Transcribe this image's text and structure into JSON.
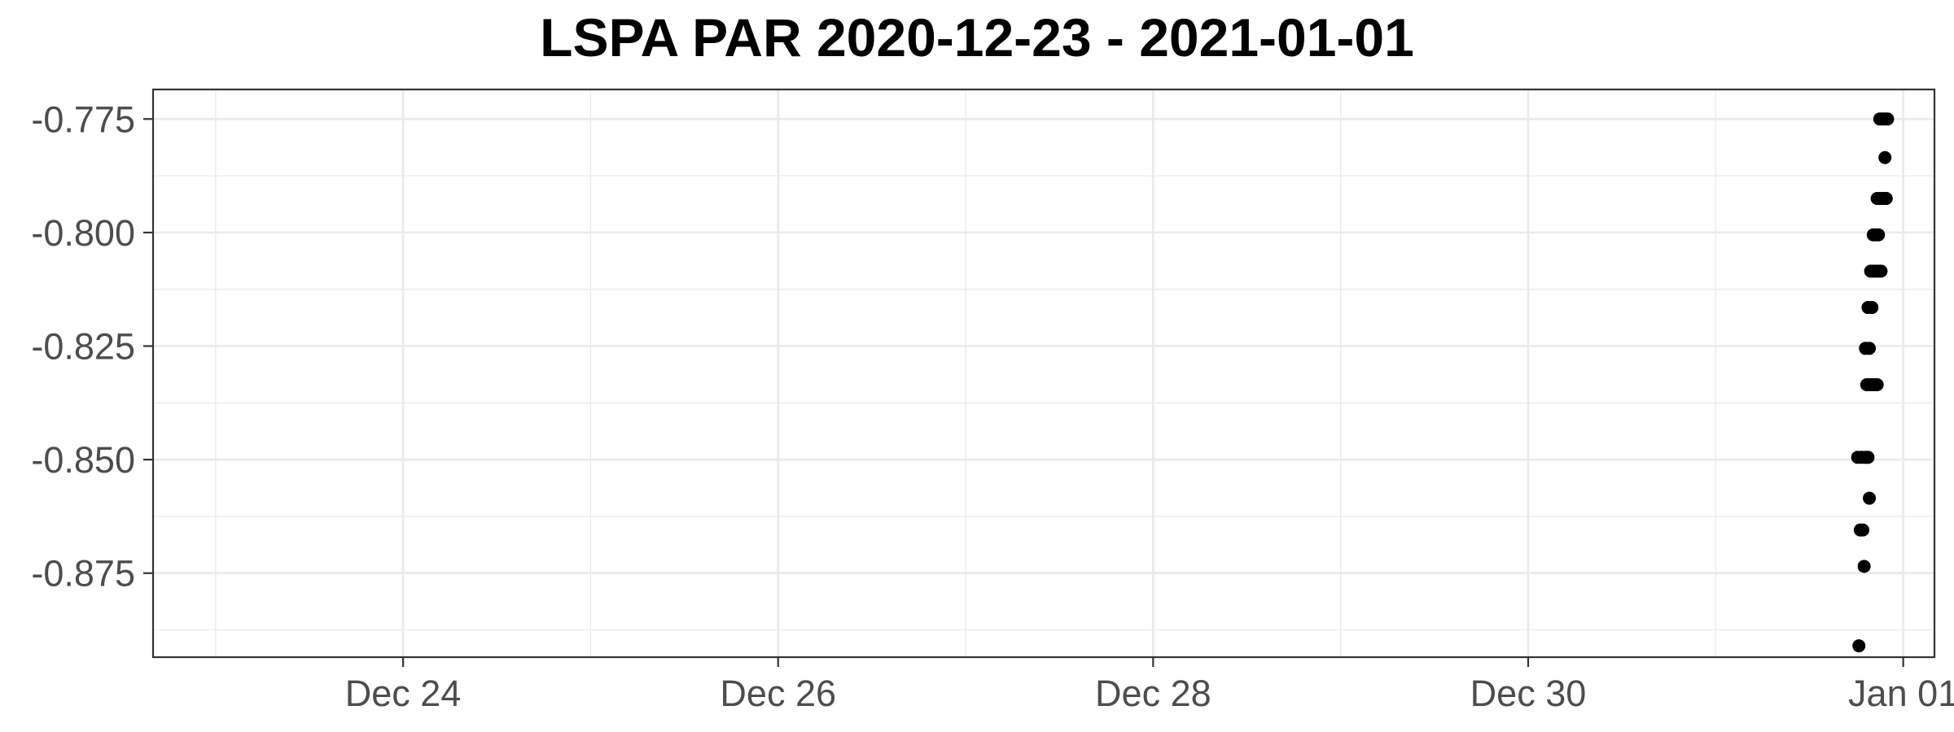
{
  "chart_data": {
    "type": "scatter",
    "title": "LSPA PAR 2020-12-23 - 2021-01-01",
    "xlabel": "",
    "ylabel": "",
    "x_axis": {
      "kind": "date",
      "range": [
        "2020-12-22T16:00",
        "2021-01-01T04:00"
      ],
      "ticks": [
        {
          "value": "2020-12-24",
          "label": "Dec 24"
        },
        {
          "value": "2020-12-26",
          "label": "Dec 26"
        },
        {
          "value": "2020-12-28",
          "label": "Dec 28"
        },
        {
          "value": "2020-12-30",
          "label": "Dec 30"
        },
        {
          "value": "2021-01-01",
          "label": "Jan 01"
        }
      ],
      "minor_ticks": [
        "2020-12-23",
        "2020-12-25",
        "2020-12-27",
        "2020-12-29",
        "2020-12-31"
      ]
    },
    "y_axis": {
      "range": [
        -0.8935,
        -0.7685
      ],
      "ticks": [
        {
          "value": -0.775,
          "label": "-0.775"
        },
        {
          "value": -0.8,
          "label": "-0.800"
        },
        {
          "value": -0.825,
          "label": "-0.825"
        },
        {
          "value": -0.85,
          "label": "-0.850"
        },
        {
          "value": -0.875,
          "label": "-0.875"
        }
      ],
      "minor_ticks": [
        -0.7875,
        -0.8125,
        -0.8375,
        -0.8625,
        -0.8875
      ]
    },
    "grid": true,
    "legend": "none",
    "marker_color": "#000000",
    "points": [
      {
        "x": "2020-12-31T18:20",
        "y": -0.891
      },
      {
        "x": "2020-12-31T18:30",
        "y": -0.8655
      },
      {
        "x": "2020-12-31T18:50",
        "y": -0.8655
      },
      {
        "x": "2020-12-31T19:00",
        "y": -0.8735
      },
      {
        "x": "2020-12-31T18:10",
        "y": -0.8495
      },
      {
        "x": "2020-12-31T18:40",
        "y": -0.8495
      },
      {
        "x": "2020-12-31T19:10",
        "y": -0.8495
      },
      {
        "x": "2020-12-31T19:30",
        "y": -0.8495
      },
      {
        "x": "2020-12-31T19:40",
        "y": -0.8585
      },
      {
        "x": "2020-12-31T19:20",
        "y": -0.8335
      },
      {
        "x": "2020-12-31T19:40",
        "y": -0.8335
      },
      {
        "x": "2020-12-31T20:00",
        "y": -0.8335
      },
      {
        "x": "2020-12-31T20:20",
        "y": -0.8335
      },
      {
        "x": "2020-12-31T20:40",
        "y": -0.8335
      },
      {
        "x": "2020-12-31T19:10",
        "y": -0.8255
      },
      {
        "x": "2020-12-31T19:40",
        "y": -0.8255
      },
      {
        "x": "2020-12-31T19:30",
        "y": -0.8165
      },
      {
        "x": "2020-12-31T20:00",
        "y": -0.8165
      },
      {
        "x": "2020-12-31T19:50",
        "y": -0.8085
      },
      {
        "x": "2020-12-31T20:10",
        "y": -0.8085
      },
      {
        "x": "2020-12-31T20:30",
        "y": -0.8085
      },
      {
        "x": "2020-12-31T20:50",
        "y": -0.8085
      },
      {
        "x": "2020-12-31T21:10",
        "y": -0.8085
      },
      {
        "x": "2020-12-31T20:10",
        "y": -0.8005
      },
      {
        "x": "2020-12-31T20:30",
        "y": -0.8005
      },
      {
        "x": "2020-12-31T20:50",
        "y": -0.8005
      },
      {
        "x": "2020-12-31T20:40",
        "y": -0.7925
      },
      {
        "x": "2020-12-31T21:00",
        "y": -0.7925
      },
      {
        "x": "2020-12-31T21:20",
        "y": -0.7925
      },
      {
        "x": "2020-12-31T21:40",
        "y": -0.7925
      },
      {
        "x": "2020-12-31T21:50",
        "y": -0.7925
      },
      {
        "x": "2020-12-31T21:40",
        "y": -0.7835
      },
      {
        "x": "2020-12-31T21:00",
        "y": -0.775
      },
      {
        "x": "2020-12-31T21:20",
        "y": -0.775
      },
      {
        "x": "2020-12-31T21:40",
        "y": -0.775
      },
      {
        "x": "2020-12-31T22:00",
        "y": -0.775
      }
    ]
  }
}
